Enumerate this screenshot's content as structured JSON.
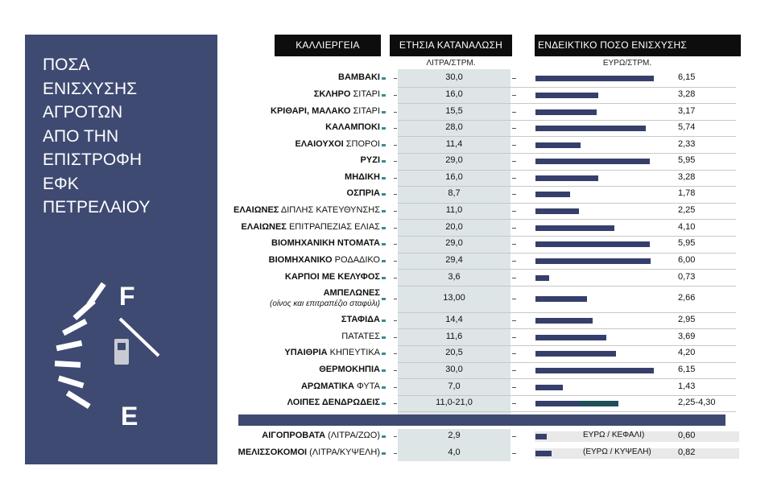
{
  "panel": {
    "title_lines": [
      "ΠΟΣΑ",
      "ΕΝΙΣΧΥΣΗΣ",
      "ΑΓΡΟΤΩΝ",
      "ΑΠΟ ΤΗΝ",
      "ΕΠΙΣΤΡΟΦΗ",
      "ΕΦΚ",
      "ΠΕΤΡΕΛΑΙΟΥ"
    ],
    "gauge_full_label": "F",
    "gauge_empty_label": "E",
    "gauge_icon": "fuel-pump-icon",
    "background_color": "#3f4a72"
  },
  "headers": {
    "crop": "ΚΑΛΛΙΕΡΓΕΙΑ",
    "consumption": "ΕΤΗΣΙΑ ΚΑΤΑΝΑΛΩΣΗ",
    "consumption_unit": "ΛΙΤΡΑ/ΣΤΡΜ.",
    "aid": "ΕΝΔΕΙΚΤΙΚΟ ΠΟΣΟ ΕΝΙΣΧΥΣΗΣ",
    "aid_unit": "ΕΥΡΩ/ΣΤΡΜ."
  },
  "colors": {
    "bar": "#363f6b",
    "bar_range": "#1f4f58",
    "marker": "#3a8a98",
    "column_bg": "#dde5e7"
  },
  "chart_data": {
    "type": "bar",
    "orientation": "horizontal",
    "xlim": [
      0,
      6.9
    ],
    "rows": [
      {
        "bold": "ΒΑΜΒΑΚΙ",
        "rest": "",
        "consumption": "30,0",
        "aid_label": "6,15",
        "aid": 6.15
      },
      {
        "bold": "ΣΚΛΗΡΟ",
        "rest": " ΣΙΤΑΡΙ",
        "consumption": "16,0",
        "aid_label": "3,28",
        "aid": 3.28
      },
      {
        "bold": "ΚΡΙΘΑΡΙ, ΜΑΛΑΚΟ",
        "rest": " ΣΙΤΑΡΙ",
        "consumption": "15,5",
        "aid_label": "3,17",
        "aid": 3.17
      },
      {
        "bold": "ΚΑΛΑΜΠΟΚΙ",
        "rest": "",
        "consumption": "28,0",
        "aid_label": "5,74",
        "aid": 5.74
      },
      {
        "bold": "ΕΛΑΙΟΥΧΟΙ",
        "rest": " ΣΠΟΡΟΙ",
        "consumption": "11,4",
        "aid_label": "2,33",
        "aid": 2.33
      },
      {
        "bold": "ΡΥΖΙ",
        "rest": "",
        "consumption": "29,0",
        "aid_label": "5,95",
        "aid": 5.95
      },
      {
        "bold": "ΜΗΔΙΚΗ",
        "rest": "",
        "consumption": "16,0",
        "aid_label": "3,28",
        "aid": 3.28
      },
      {
        "bold": "ΟΣΠΡΙΑ",
        "rest": "",
        "consumption": "8,7",
        "aid_label": "1,78",
        "aid": 1.78
      },
      {
        "bold": "ΕΛΑΙΩΝΕΣ",
        "rest": " ΔΙΠΛΗΣ ΚΑΤΕΥΘΥΝΣΗΣ",
        "consumption": "11,0",
        "aid_label": "2,25",
        "aid": 2.25
      },
      {
        "bold": "ΕΛΑΙΩΝΕΣ",
        "rest": " ΕΠΙΤΡΑΠΕΖΙΑΣ ΕΛΙΑΣ",
        "consumption": "20,0",
        "aid_label": "4,10",
        "aid": 4.1
      },
      {
        "bold": "ΒΙΟΜΗΧΑΝΙΚΗ ΝΤΟΜΑΤΑ",
        "rest": "",
        "consumption": "29,0",
        "aid_label": "5,95",
        "aid": 5.95
      },
      {
        "bold": "ΒΙΟΜΗΧΑΝΙΚΟ",
        "rest": " ΡΟΔΑΔΙΚΟ",
        "consumption": "29,4",
        "aid_label": "6,00",
        "aid": 6.0
      },
      {
        "bold": "ΚΑΡΠΟΙ ΜΕ ΚΕΛΥΦΟΣ",
        "rest": "",
        "consumption": "3,6",
        "aid_label": "0,73",
        "aid": 0.73
      },
      {
        "bold": "ΑΜΠΕΛΩΝΕΣ",
        "rest": "",
        "sub": "(οίνος και επιτραπέζιο σταφύλι)",
        "consumption": "13,00",
        "aid_label": "2,66",
        "aid": 2.66
      },
      {
        "bold": "ΣΤΑΦΙΔΑ",
        "rest": "",
        "consumption": "14,4",
        "aid_label": "2,95",
        "aid": 2.95
      },
      {
        "bold": "",
        "rest": "ΠΑΤΑΤΕΣ",
        "consumption": "11,6",
        "aid_label": "3,69",
        "aid": 3.69
      },
      {
        "bold": "ΥΠΑΙΘΡΙΑ",
        "rest": " ΚΗΠΕΥΤΙΚΑ",
        "consumption": "20,5",
        "aid_label": "4,20",
        "aid": 4.2
      },
      {
        "bold": "ΘΕΡΜΟΚΗΠΙΑ",
        "rest": "",
        "consumption": "30,0",
        "aid_label": "6,15",
        "aid": 6.15
      },
      {
        "bold": "ΑΡΩΜΑΤΙΚΑ",
        "rest": " ΦΥΤΑ",
        "consumption": "7,0",
        "aid_label": "1,43",
        "aid": 1.43
      },
      {
        "bold": "ΛΟΙΠΕΣ ΔΕΝΔΡΩΔΕΙΣ",
        "rest": "",
        "consumption": "11,0-21,0",
        "aid_label": "2,25-4,30",
        "aid": 2.25,
        "aid_max": 4.3
      }
    ],
    "livestock_rows": [
      {
        "bold": "ΑΙΓΟΠΡΟΒΑΤΑ",
        "rest": " (ΛΙΤΡΑ/ΖΩΟ)",
        "consumption": "2,9",
        "unit_note": "ΕΥΡΩ / ΚΕΦΑΛΙ)",
        "aid_label": "0,60",
        "aid": 0.6
      },
      {
        "bold": "ΜΕΛΙΣΣΟΚΟΜΟΙ",
        "rest": " (ΛΙΤΡΑ/ΚΥΨΕΛΗ)",
        "consumption": "4,0",
        "unit_note": "(ΕΥΡΩ / ΚΥΨΕΛΗ)",
        "aid_label": "0,82",
        "aid": 0.82
      }
    ]
  }
}
